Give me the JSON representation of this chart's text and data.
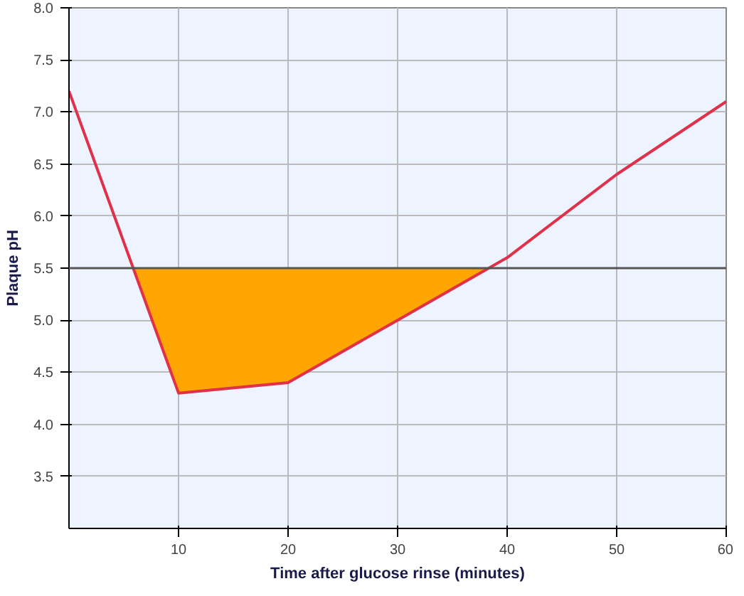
{
  "chart_data": {
    "type": "line",
    "xlabel": "Time after glucose rinse (minutes)",
    "ylabel": "Plaque pH",
    "xlim": [
      0,
      60
    ],
    "ylim": [
      3,
      8
    ],
    "xticks": [
      10,
      20,
      30,
      40,
      50,
      60
    ],
    "yticks": [
      3.5,
      {
        "value": 4,
        "label": "4.0"
      },
      4.5,
      {
        "value": 5,
        "label": "5.0"
      },
      5.5,
      {
        "value": 6,
        "label": "6.0"
      },
      6.5,
      {
        "value": 7,
        "label": "7.0"
      },
      7.5,
      {
        "value": 8,
        "label": "8.0"
      }
    ],
    "grid": true,
    "marker": "none",
    "line_style": "solid",
    "series": [
      {
        "type": "area",
        "color": "#ffa500",
        "x": [
          5.9,
          10,
          20,
          30,
          38.3
        ],
        "values": [
          5.5,
          4.3,
          4.4,
          5.0,
          5.5
        ]
      },
      {
        "color": "#e0304a",
        "x": [
          0,
          10,
          20,
          30,
          40,
          50,
          60
        ],
        "values": [
          7.2,
          4.3,
          4.4,
          5.0,
          5.6,
          6.4,
          7.1
        ]
      }
    ],
    "ref_lines": [
      {
        "axis": "y",
        "value": 5.5,
        "color": "#555555"
      }
    ]
  }
}
